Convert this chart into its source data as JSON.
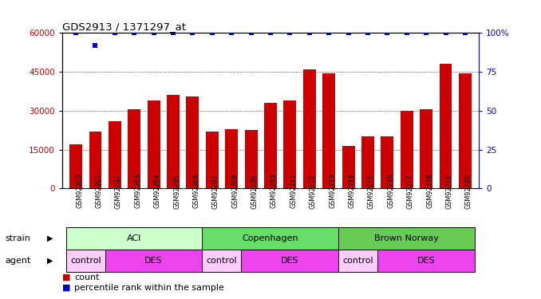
{
  "title": "GDS2913 / 1371297_at",
  "samples": [
    "GSM92200",
    "GSM92201",
    "GSM92202",
    "GSM92203",
    "GSM92204",
    "GSM92205",
    "GSM92206",
    "GSM92207",
    "GSM92208",
    "GSM92209",
    "GSM92210",
    "GSM92211",
    "GSM92212",
    "GSM92213",
    "GSM92214",
    "GSM92215",
    "GSM92216",
    "GSM92217",
    "GSM92218",
    "GSM92219",
    "GSM92220"
  ],
  "counts": [
    17000,
    22000,
    26000,
    30500,
    34000,
    36000,
    35500,
    22000,
    23000,
    22500,
    33000,
    34000,
    46000,
    44500,
    16500,
    20000,
    20000,
    30000,
    30500,
    48000,
    44500
  ],
  "percentile": [
    100,
    92,
    100,
    100,
    100,
    100,
    100,
    100,
    100,
    100,
    100,
    100,
    100,
    100,
    100,
    100,
    100,
    100,
    100,
    100,
    100
  ],
  "bar_color": "#cc0000",
  "percentile_color": "#0000cc",
  "ylim_left": [
    0,
    60000
  ],
  "ylim_right": [
    0,
    100
  ],
  "yticks_left": [
    0,
    15000,
    30000,
    45000,
    60000
  ],
  "yticks_right": [
    0,
    25,
    50,
    75,
    100
  ],
  "strain_groups": [
    {
      "label": "ACI",
      "start": 0,
      "end": 6,
      "color": "#ccffcc"
    },
    {
      "label": "Copenhagen",
      "start": 7,
      "end": 13,
      "color": "#66dd66"
    },
    {
      "label": "Brown Norway",
      "start": 14,
      "end": 20,
      "color": "#66cc55"
    }
  ],
  "agent_groups": [
    {
      "label": "control",
      "start": 0,
      "end": 1,
      "color": "#ffccff"
    },
    {
      "label": "DES",
      "start": 2,
      "end": 6,
      "color": "#ee44ee"
    },
    {
      "label": "control",
      "start": 7,
      "end": 8,
      "color": "#ffccff"
    },
    {
      "label": "DES",
      "start": 9,
      "end": 13,
      "color": "#ee44ee"
    },
    {
      "label": "control",
      "start": 14,
      "end": 15,
      "color": "#ffccff"
    },
    {
      "label": "DES",
      "start": 16,
      "end": 20,
      "color": "#ee44ee"
    }
  ],
  "xtick_bg_color": "#cccccc",
  "legend_count_color": "#cc0000",
  "legend_percentile_color": "#0000cc"
}
